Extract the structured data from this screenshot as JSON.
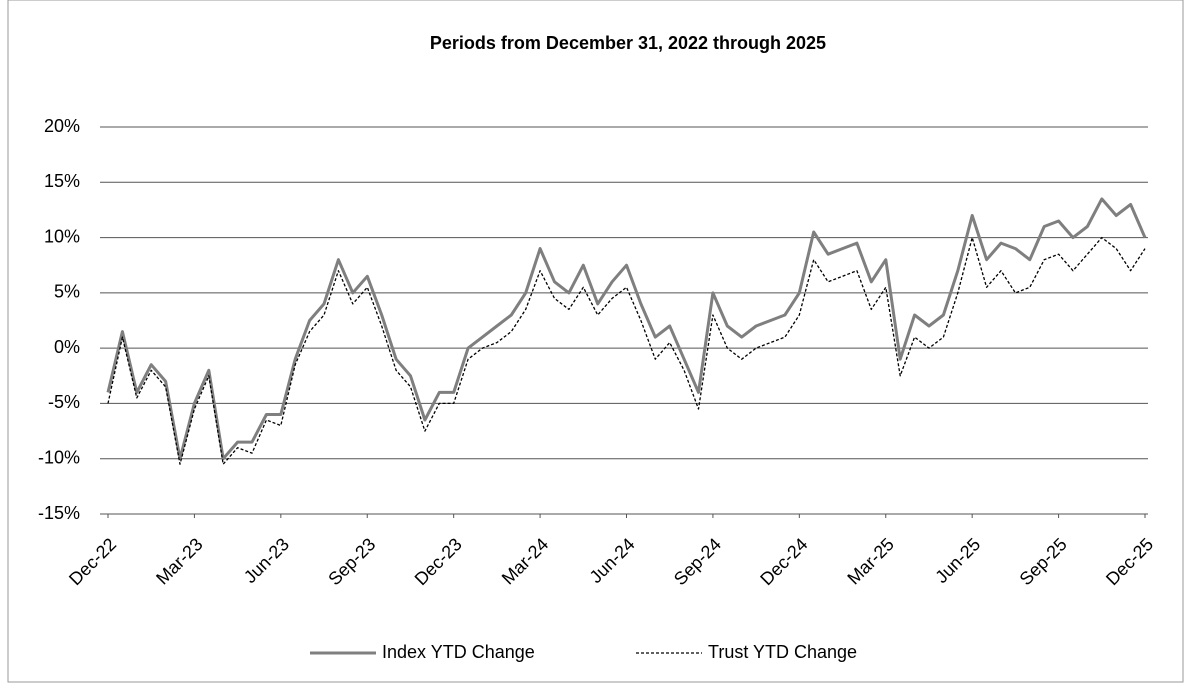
{
  "chart_data": {
    "type": "line",
    "title": "Periods from December 31, 2022 through 2025",
    "x": [
      0,
      0.5,
      1,
      1.5,
      2,
      2.5,
      3,
      3.5,
      4,
      4.5,
      5,
      5.5,
      6,
      6.5,
      7,
      7.5,
      8,
      8.5,
      9,
      9.5,
      10,
      10.5,
      11,
      11.5,
      12,
      12.5,
      13,
      13.5,
      14,
      14.5,
      15,
      15.5,
      16,
      16.5,
      17,
      17.5,
      18,
      18.5,
      19,
      19.5,
      20,
      20.5,
      21,
      21.5,
      22,
      22.5,
      23,
      23.5,
      24,
      24.5,
      25,
      25.5,
      26,
      26.5,
      27,
      27.5,
      28,
      28.5,
      29,
      29.5,
      30,
      30.5,
      31,
      31.5,
      32,
      32.5,
      33,
      33.5,
      34,
      34.5,
      35,
      35.5,
      36
    ],
    "series": [
      {
        "name": "Index YTD Change",
        "color": "#7f7f7f",
        "dash": false,
        "values": [
          -4,
          1.5,
          -4,
          -1.5,
          -3,
          -10,
          -5,
          -2,
          -10,
          -8.5,
          -8.5,
          -6,
          -6,
          -1,
          2.5,
          4,
          8,
          5,
          6.5,
          3,
          -1,
          -2.5,
          -6.5,
          -4,
          -4,
          0,
          1,
          2,
          3,
          5,
          9,
          6,
          5,
          7.5,
          4,
          6,
          7.5,
          4,
          1,
          2,
          -1,
          -4,
          5,
          2,
          1,
          2,
          2.5,
          3,
          5,
          10.5,
          8.5,
          9,
          9.5,
          6,
          8,
          -1,
          3,
          2,
          3,
          7,
          12,
          8,
          9.5,
          9,
          8,
          11,
          11.5,
          10,
          11,
          13.5,
          12,
          13,
          10
        ]
      },
      {
        "name": "Trust YTD Change",
        "color": "#000000",
        "dash": true,
        "values": [
          -5,
          1,
          -4.5,
          -2,
          -3.5,
          -10.5,
          -5.5,
          -2.5,
          -10.5,
          -9,
          -9.5,
          -6.5,
          -7,
          -1.5,
          1.5,
          3,
          7,
          4,
          5.5,
          2,
          -2,
          -3.5,
          -7.5,
          -5,
          -5,
          -1,
          0,
          0.5,
          1.5,
          3.5,
          7,
          4.5,
          3.5,
          5.5,
          3,
          4.5,
          5.5,
          2.5,
          -1,
          0.5,
          -2,
          -5.5,
          3,
          0,
          -1,
          0,
          0.5,
          1,
          3,
          8,
          6,
          6.5,
          7,
          3.5,
          5.5,
          -2.5,
          1,
          0,
          1,
          5,
          10,
          5.5,
          7,
          5,
          5.5,
          8,
          8.5,
          7,
          8.5,
          10,
          9,
          7,
          9
        ]
      }
    ],
    "xlim": [
      0,
      36
    ],
    "xticks": [
      {
        "value": 0,
        "label": "Dec-22"
      },
      {
        "value": 3,
        "label": "Mar-23"
      },
      {
        "value": 6,
        "label": "Jun-23"
      },
      {
        "value": 9,
        "label": "Sep-23"
      },
      {
        "value": 12,
        "label": "Dec-23"
      },
      {
        "value": 15,
        "label": "Mar-24"
      },
      {
        "value": 18,
        "label": "Jun-24"
      },
      {
        "value": 21,
        "label": "Sep-24"
      },
      {
        "value": 24,
        "label": "Dec-24"
      },
      {
        "value": 27,
        "label": "Mar-25"
      },
      {
        "value": 30,
        "label": "Jun-25"
      },
      {
        "value": 33,
        "label": "Sep-25"
      },
      {
        "value": 36,
        "label": "Dec-25"
      }
    ],
    "ylim": [
      -15,
      20
    ],
    "yticks": [
      {
        "value": -15,
        "label": "-15%"
      },
      {
        "value": -10,
        "label": "-10%"
      },
      {
        "value": -5,
        "label": "-5%"
      },
      {
        "value": 0,
        "label": "0%"
      },
      {
        "value": 5,
        "label": "5%"
      },
      {
        "value": 10,
        "label": "10%"
      },
      {
        "value": 15,
        "label": "15%"
      },
      {
        "value": 20,
        "label": "20%"
      }
    ],
    "grid": true,
    "legend": "bottom"
  }
}
